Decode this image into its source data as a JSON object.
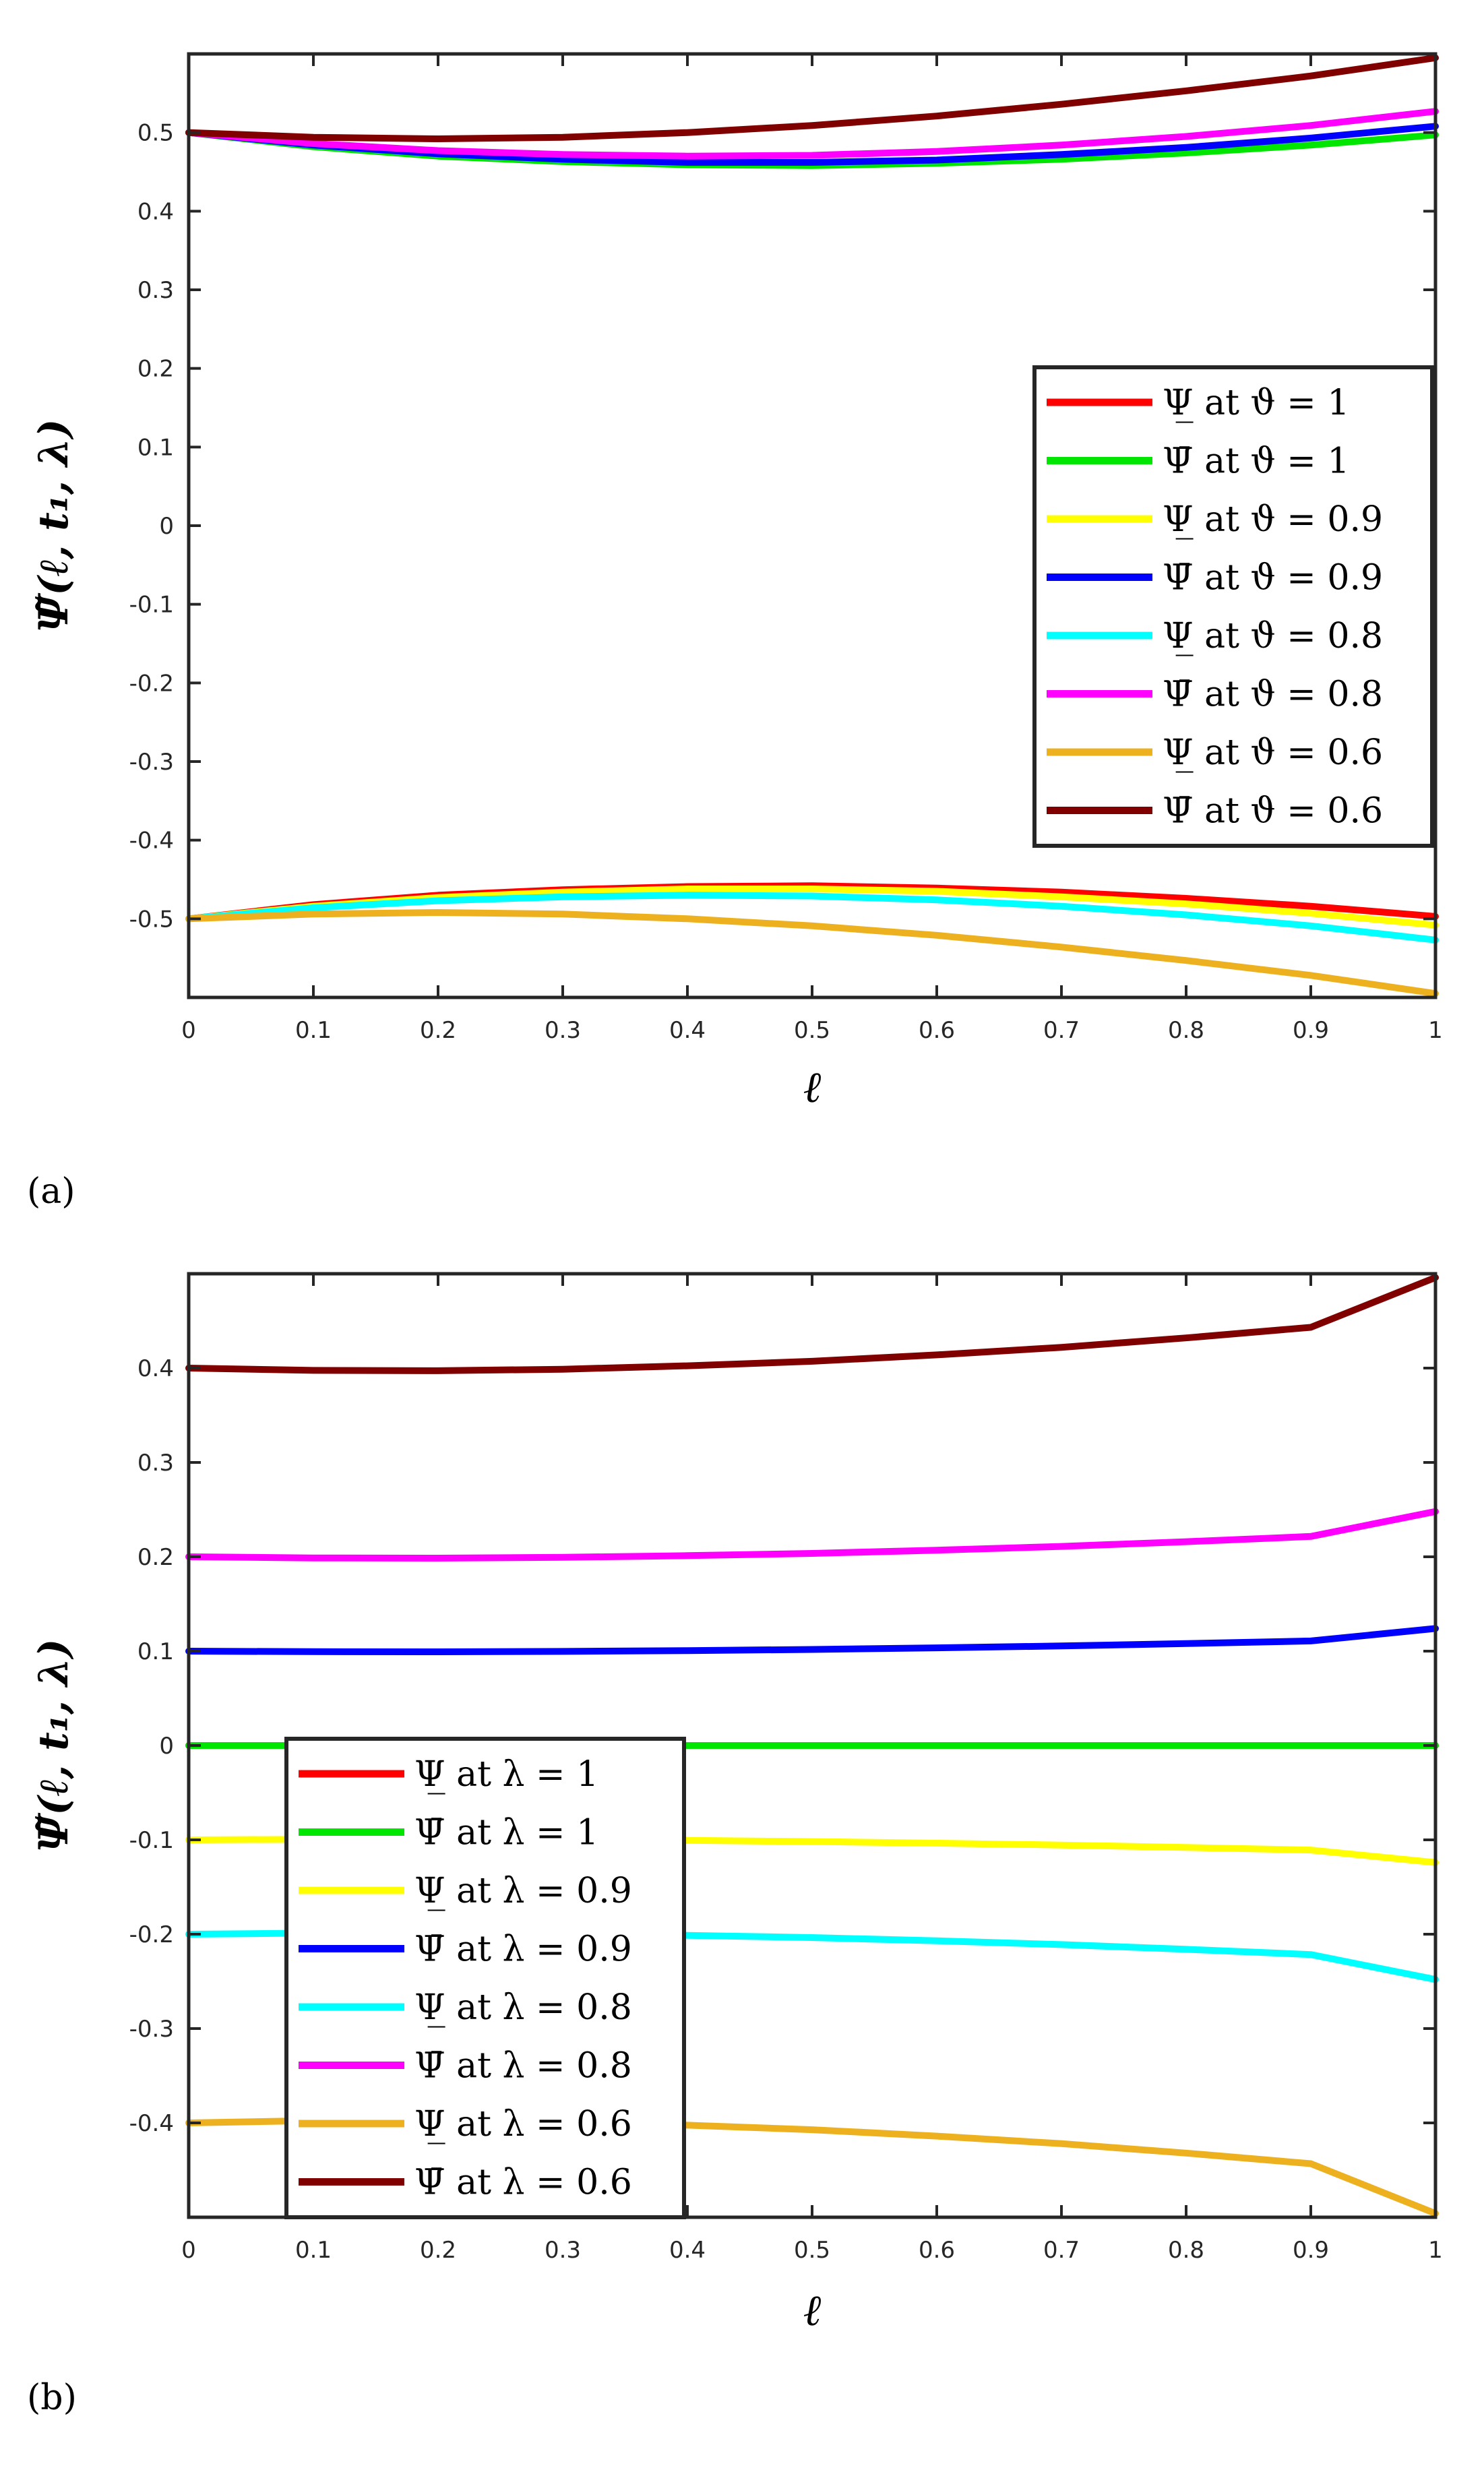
{
  "chart_data": [
    {
      "type": "line",
      "panel_label": "(a)",
      "xlabel": "ℓ",
      "ylabel": "Ψ̃(ℓ, t₁, λ)",
      "xlim": [
        0,
        1
      ],
      "ylim": [
        -0.6,
        0.6
      ],
      "xticks": [
        0,
        0.1,
        0.2,
        0.3,
        0.4,
        0.5,
        0.6,
        0.7,
        0.8,
        0.9,
        1
      ],
      "xtick_labels": [
        "0",
        "0.1",
        "0.2",
        "0.3",
        "0.4",
        "0.5",
        "0.6",
        "0.7",
        "0.8",
        "0.9",
        "1"
      ],
      "yticks": [
        -0.5,
        -0.4,
        -0.3,
        -0.2,
        -0.1,
        0,
        0.1,
        0.2,
        0.3,
        0.4,
        0.5
      ],
      "ytick_labels": [
        "-0.5",
        "-0.4",
        "-0.3",
        "-0.2",
        "-0.1",
        "0",
        "0.1",
        "0.2",
        "0.3",
        "0.4",
        "0.5"
      ],
      "legend_position": "center-right",
      "x": [
        0,
        0.1,
        0.2,
        0.3,
        0.4,
        0.5,
        0.6,
        0.7,
        0.8,
        0.9,
        1
      ],
      "series": [
        {
          "name": "Ψ̲ at ϑ = 1",
          "color": "#ff0000",
          "values": [
            -0.5,
            -0.482,
            -0.47,
            -0.463,
            -0.459,
            -0.458,
            -0.461,
            -0.466,
            -0.474,
            -0.484,
            -0.497
          ]
        },
        {
          "name": "Ψ̄ at ϑ = 1",
          "color": "#00e600",
          "values": [
            0.5,
            0.482,
            0.47,
            0.463,
            0.459,
            0.458,
            0.461,
            0.466,
            0.474,
            0.484,
            0.497
          ]
        },
        {
          "name": "Ψ̲ at ϑ = 0.9",
          "color": "#ffff00",
          "values": [
            -0.5,
            -0.484,
            -0.473,
            -0.466,
            -0.462,
            -0.462,
            -0.465,
            -0.472,
            -0.481,
            -0.493,
            -0.508
          ]
        },
        {
          "name": "Ψ̄ at ϑ = 0.9",
          "color": "#0000ff",
          "values": [
            0.5,
            0.484,
            0.473,
            0.466,
            0.462,
            0.462,
            0.465,
            0.472,
            0.481,
            0.493,
            0.508
          ]
        },
        {
          "name": "Ψ̲ at ϑ = 0.8",
          "color": "#00ffff",
          "values": [
            -0.5,
            -0.486,
            -0.477,
            -0.472,
            -0.47,
            -0.471,
            -0.476,
            -0.484,
            -0.495,
            -0.509,
            -0.527
          ]
        },
        {
          "name": "Ψ̄ at ϑ = 0.8",
          "color": "#ff00ff",
          "values": [
            0.5,
            0.486,
            0.477,
            0.472,
            0.47,
            0.471,
            0.476,
            0.484,
            0.495,
            0.509,
            0.527
          ]
        },
        {
          "name": "Ψ̲ at ϑ = 0.6",
          "color": "#edb120",
          "values": [
            -0.5,
            -0.494,
            -0.492,
            -0.494,
            -0.5,
            -0.509,
            -0.521,
            -0.536,
            -0.553,
            -0.572,
            -0.595
          ]
        },
        {
          "name": "Ψ̄ at ϑ = 0.6",
          "color": "#800000",
          "values": [
            0.5,
            0.494,
            0.492,
            0.494,
            0.5,
            0.509,
            0.521,
            0.536,
            0.553,
            0.572,
            0.595
          ]
        }
      ]
    },
    {
      "type": "line",
      "panel_label": "(b)",
      "xlabel": "ℓ",
      "ylabel": "Ψ̃(ℓ, t₁, λ)",
      "xlim": [
        0,
        1
      ],
      "ylim": [
        -0.5,
        0.5
      ],
      "xticks": [
        0,
        0.1,
        0.2,
        0.3,
        0.4,
        0.5,
        0.6,
        0.7,
        0.8,
        0.9,
        1
      ],
      "xtick_labels": [
        "0",
        "0.1",
        "0.2",
        "0.3",
        "0.4",
        "0.5",
        "0.6",
        "0.7",
        "0.8",
        "0.9",
        "1"
      ],
      "yticks": [
        -0.4,
        -0.3,
        -0.2,
        -0.1,
        0,
        0.1,
        0.2,
        0.3,
        0.4
      ],
      "ytick_labels": [
        "-0.4",
        "-0.3",
        "-0.2",
        "-0.1",
        "0",
        "0.1",
        "0.2",
        "0.3",
        "0.4"
      ],
      "legend_position": "bottom-left",
      "x": [
        0,
        0.1,
        0.2,
        0.3,
        0.4,
        0.5,
        0.6,
        0.7,
        0.8,
        0.9,
        1
      ],
      "series": [
        {
          "name": "Ψ̲ at λ = 1",
          "color": "#ff0000",
          "values": [
            0,
            0,
            0,
            0,
            0,
            0,
            0,
            0,
            0,
            0,
            0
          ]
        },
        {
          "name": "Ψ̄ at λ = 1",
          "color": "#00e600",
          "values": [
            0,
            0,
            0,
            0,
            0,
            0,
            0,
            0,
            0,
            0,
            0
          ]
        },
        {
          "name": "Ψ̲ at λ = 0.9",
          "color": "#ffff00",
          "values": [
            -0.1,
            -0.0994,
            -0.0993,
            -0.0997,
            -0.1006,
            -0.1018,
            -0.1035,
            -0.1055,
            -0.108,
            -0.1108,
            -0.124
          ]
        },
        {
          "name": "Ψ̄ at λ = 0.9",
          "color": "#0000ff",
          "values": [
            0.1,
            0.0994,
            0.0993,
            0.0997,
            0.1006,
            0.1018,
            0.1035,
            0.1055,
            0.108,
            0.1108,
            0.124
          ]
        },
        {
          "name": "Ψ̲ at λ = 0.8",
          "color": "#00ffff",
          "values": [
            -0.2,
            -0.1988,
            -0.1986,
            -0.1994,
            -0.2012,
            -0.2036,
            -0.207,
            -0.211,
            -0.216,
            -0.2216,
            -0.248
          ]
        },
        {
          "name": "Ψ̄ at λ = 0.8",
          "color": "#ff00ff",
          "values": [
            0.2,
            0.1988,
            0.1986,
            0.1994,
            0.2012,
            0.2036,
            0.207,
            0.211,
            0.216,
            0.2216,
            0.248
          ]
        },
        {
          "name": "Ψ̲ at λ = 0.6",
          "color": "#edb120",
          "values": [
            -0.4,
            -0.3976,
            -0.3972,
            -0.3988,
            -0.4024,
            -0.4072,
            -0.414,
            -0.422,
            -0.432,
            -0.4432,
            -0.496
          ]
        },
        {
          "name": "Ψ̄ at λ = 0.6",
          "color": "#800000",
          "values": [
            0.4,
            0.3976,
            0.3972,
            0.3988,
            0.4024,
            0.4072,
            0.414,
            0.422,
            0.432,
            0.4432,
            0.496
          ]
        }
      ]
    }
  ]
}
